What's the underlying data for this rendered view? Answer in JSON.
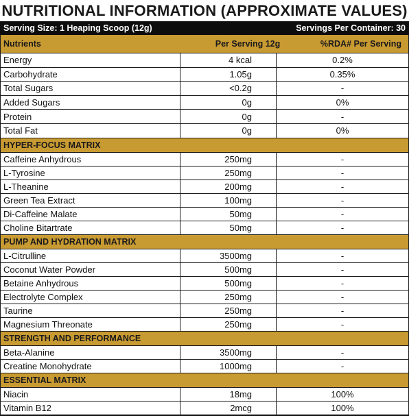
{
  "title": "NUTRITIONAL INFORMATION (APPROXIMATE VALUES)",
  "serving": {
    "size": "Serving Size: 1 Heaping Scoop (12g)",
    "per_container": "Servings Per Container: 30"
  },
  "columns": {
    "nutrients": "Nutrients",
    "per_serving": "Per Serving 12g",
    "rda": "%RDA# Per Serving"
  },
  "basic": [
    {
      "name": "Energy",
      "amount": "4 kcal",
      "rda": "0.2%"
    },
    {
      "name": "Carbohydrate",
      "amount": "1.05g",
      "rda": "0.35%"
    },
    {
      "name": "Total Sugars",
      "amount": "<0.2g",
      "rda": "-"
    },
    {
      "name": "Added Sugars",
      "amount": "0g",
      "rda": "0%"
    },
    {
      "name": "Protein",
      "amount": "0g",
      "rda": "-"
    },
    {
      "name": "Total Fat",
      "amount": "0g",
      "rda": "0%"
    }
  ],
  "sections": [
    {
      "title": "HYPER-FOCUS MATRIX",
      "rows": [
        {
          "name": "Caffeine Anhydrous",
          "amount": "250mg",
          "rda": "-"
        },
        {
          "name": "L-Tyrosine",
          "amount": "250mg",
          "rda": "-"
        },
        {
          "name": "L-Theanine",
          "amount": "200mg",
          "rda": "-"
        },
        {
          "name": "Green Tea Extract",
          "amount": "100mg",
          "rda": "-"
        },
        {
          "name": "Di-Caffeine Malate",
          "amount": "50mg",
          "rda": "-"
        },
        {
          "name": "Choline Bitartrate",
          "amount": "50mg",
          "rda": "-"
        }
      ]
    },
    {
      "title": "PUMP AND HYDRATION MATRIX",
      "rows": [
        {
          "name": "L-Citrulline",
          "amount": "3500mg",
          "rda": "-"
        },
        {
          "name": "Coconut Water Powder",
          "amount": "500mg",
          "rda": "-"
        },
        {
          "name": "Betaine Anhydrous",
          "amount": "500mg",
          "rda": "-"
        },
        {
          "name": "Electrolyte Complex",
          "amount": "250mg",
          "rda": "-"
        },
        {
          "name": "Taurine",
          "amount": "250mg",
          "rda": "-"
        },
        {
          "name": "Magnesium Threonate",
          "amount": "250mg",
          "rda": "-"
        }
      ]
    },
    {
      "title": "STRENGTH AND PERFORMANCE",
      "rows": [
        {
          "name": "Beta-Alanine",
          "amount": "3500mg",
          "rda": "-"
        },
        {
          "name": "Creatine Monohydrate",
          "amount": "1000mg",
          "rda": "-"
        }
      ]
    },
    {
      "title": "ESSENTIAL MATRIX",
      "rows": [
        {
          "name": "Niacin",
          "amount": "18mg",
          "rda": "100%"
        },
        {
          "name": "Vitamin B12",
          "amount": "2mcg",
          "rda": "100%"
        }
      ]
    }
  ],
  "colors": {
    "gold": "#c89a32",
    "black": "#0d0d0d"
  }
}
